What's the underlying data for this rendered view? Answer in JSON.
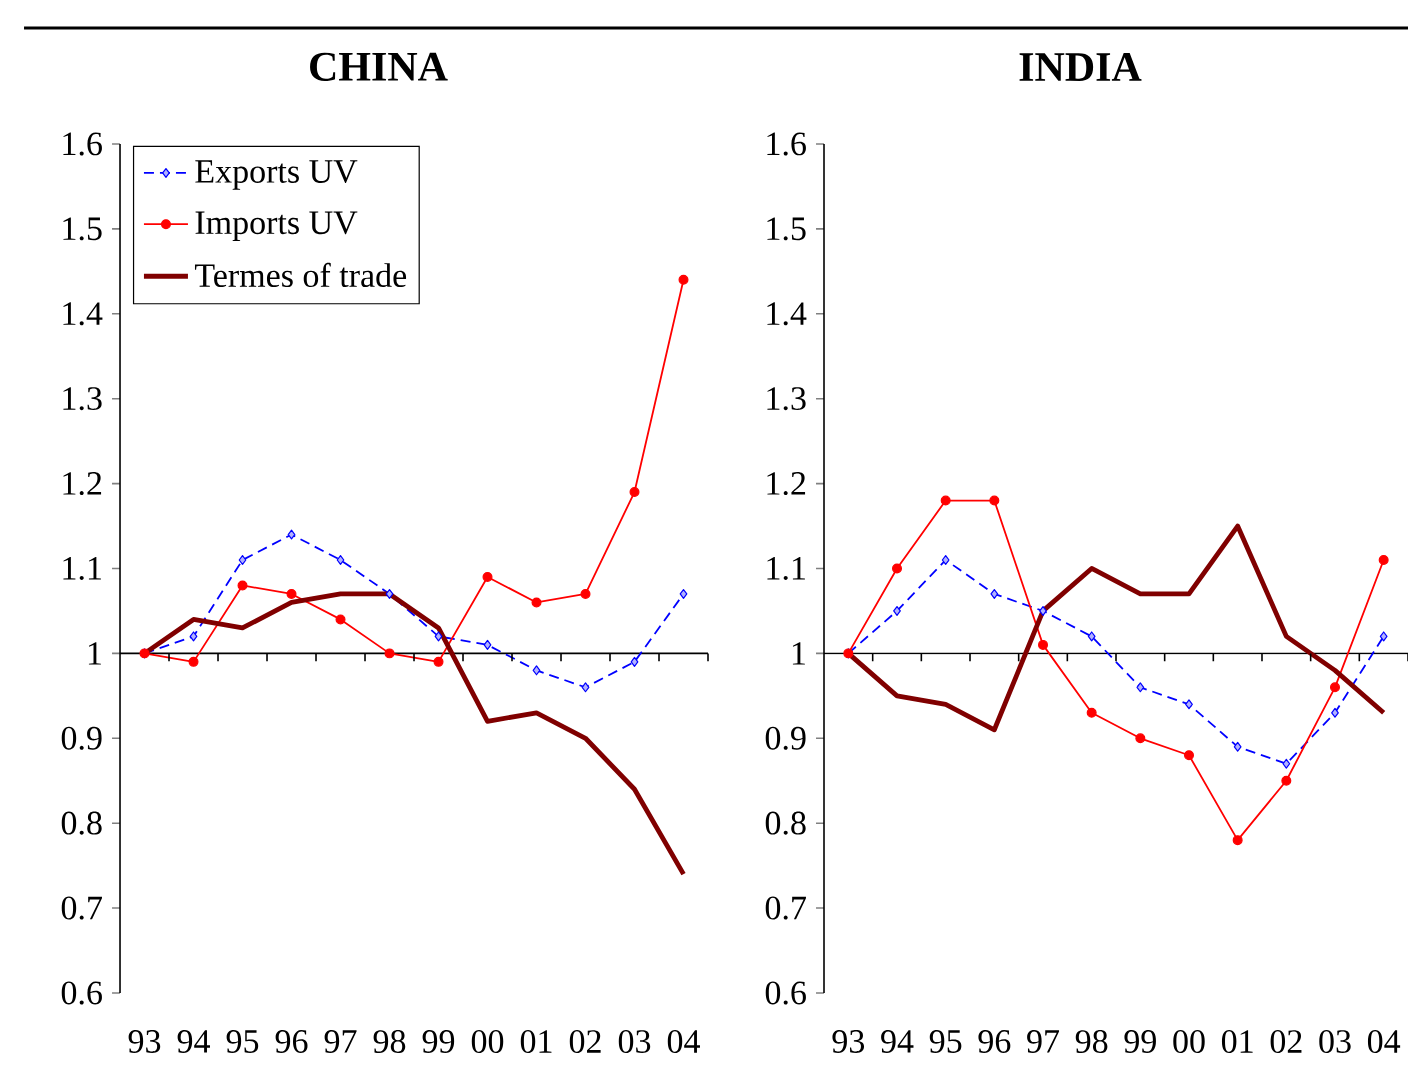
{
  "chart_data": [
    {
      "type": "line",
      "title": "CHINA",
      "categories": [
        "93",
        "94",
        "95",
        "96",
        "97",
        "98",
        "99",
        "00",
        "01",
        "02",
        "03",
        "04"
      ],
      "ylim": [
        0.6,
        1.6
      ],
      "yticks": [
        0.6,
        0.7,
        0.8,
        0.9,
        1,
        1.1,
        1.2,
        1.3,
        1.4,
        1.5,
        1.6
      ],
      "legend": "top left",
      "ref_lines": [
        {
          "axis": "y",
          "value": 1,
          "color": "#000000"
        }
      ],
      "series": [
        {
          "name": "Exports UV",
          "color": "#0000ff",
          "marker": "diamond",
          "line_style": "dashed",
          "values": [
            1,
            1.02,
            1.11,
            1.14,
            1.11,
            1.07,
            1.02,
            1.01,
            0.98,
            0.96,
            0.99,
            1.07
          ]
        },
        {
          "name": "Imports UV",
          "color": "#ff0000",
          "marker": "circle",
          "line_style": "solid",
          "values": [
            1,
            0.99,
            1.08,
            1.07,
            1.04,
            1.0,
            0.99,
            1.09,
            1.06,
            1.07,
            1.19,
            1.44
          ]
        },
        {
          "name": "Termes of trade",
          "color": "#800000",
          "marker": "none",
          "line_style": "solid",
          "values": [
            1,
            1.04,
            1.03,
            1.06,
            1.07,
            1.07,
            1.03,
            0.92,
            0.93,
            0.9,
            0.84,
            0.74
          ]
        }
      ]
    },
    {
      "type": "line",
      "title": "INDIA",
      "categories": [
        "93",
        "94",
        "95",
        "96",
        "97",
        "98",
        "99",
        "00",
        "01",
        "02",
        "03",
        "04"
      ],
      "ylim": [
        0.6,
        1.6
      ],
      "yticks": [
        0.6,
        0.7,
        0.8,
        0.9,
        1,
        1.1,
        1.2,
        1.3,
        1.4,
        1.5,
        1.6
      ],
      "ref_lines": [
        {
          "axis": "y",
          "value": 1,
          "color": "#000000"
        }
      ],
      "series": [
        {
          "color": "#0000ff",
          "marker": "diamond",
          "line_style": "dashed",
          "values": [
            1,
            1.05,
            1.11,
            1.07,
            1.05,
            1.02,
            0.96,
            0.94,
            0.89,
            0.87,
            0.93,
            1.02
          ]
        },
        {
          "color": "#ff0000",
          "marker": "circle",
          "line_style": "solid",
          "values": [
            1,
            1.1,
            1.18,
            1.18,
            1.01,
            0.93,
            0.9,
            0.88,
            0.78,
            0.85,
            0.96,
            1.11
          ]
        },
        {
          "color": "#800000",
          "marker": "none",
          "line_style": "solid",
          "values": [
            1,
            0.95,
            0.94,
            0.91,
            1.05,
            1.1,
            1.07,
            1.07,
            1.15,
            1.02,
            0.98,
            0.93
          ]
        }
      ]
    }
  ]
}
